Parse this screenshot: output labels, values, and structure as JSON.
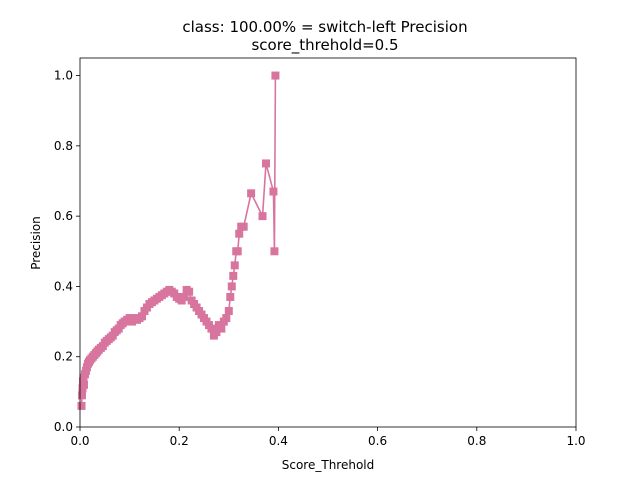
{
  "chart_data": {
    "type": "line",
    "title": "class: 100.00% = switch-left Precision",
    "subtitle": "score_threhold=0.5",
    "xlabel": "Score_Threhold",
    "ylabel": "Precision",
    "xlim": [
      0,
      1
    ],
    "ylim": [
      0,
      1.05
    ],
    "xticks": [
      "0.0",
      "0.2",
      "0.4",
      "0.6",
      "0.8",
      "1.0"
    ],
    "yticks": [
      "0.0",
      "0.2",
      "0.4",
      "0.6",
      "0.8",
      "1.0"
    ],
    "grid": false,
    "legend": "none",
    "series": [
      {
        "color": "#d8759e",
        "marker": "square",
        "x": [
          0.003,
          0.004,
          0.005,
          0.006,
          0.007,
          0.008,
          0.01,
          0.012,
          0.014,
          0.016,
          0.018,
          0.02,
          0.023,
          0.026,
          0.029,
          0.032,
          0.035,
          0.038,
          0.042,
          0.046,
          0.05,
          0.054,
          0.058,
          0.062,
          0.066,
          0.07,
          0.074,
          0.078,
          0.082,
          0.086,
          0.09,
          0.095,
          0.1,
          0.105,
          0.11,
          0.115,
          0.12,
          0.125,
          0.13,
          0.135,
          0.14,
          0.145,
          0.15,
          0.155,
          0.16,
          0.165,
          0.17,
          0.175,
          0.18,
          0.185,
          0.19,
          0.195,
          0.2,
          0.205,
          0.21,
          0.215,
          0.22,
          0.225,
          0.23,
          0.235,
          0.24,
          0.245,
          0.25,
          0.255,
          0.26,
          0.265,
          0.27,
          0.275,
          0.28,
          0.285,
          0.29,
          0.295,
          0.3,
          0.303,
          0.306,
          0.309,
          0.312,
          0.315,
          0.318,
          0.321,
          0.325,
          0.33,
          0.345,
          0.368,
          0.375,
          0.39,
          0.392,
          0.394
        ],
        "y": [
          0.06,
          0.09,
          0.11,
          0.13,
          0.14,
          0.12,
          0.15,
          0.16,
          0.17,
          0.18,
          0.185,
          0.19,
          0.195,
          0.2,
          0.205,
          0.21,
          0.215,
          0.22,
          0.225,
          0.23,
          0.24,
          0.245,
          0.25,
          0.255,
          0.26,
          0.27,
          0.275,
          0.28,
          0.29,
          0.295,
          0.3,
          0.305,
          0.31,
          0.3,
          0.31,
          0.305,
          0.31,
          0.315,
          0.33,
          0.34,
          0.35,
          0.355,
          0.36,
          0.365,
          0.37,
          0.375,
          0.38,
          0.385,
          0.39,
          0.385,
          0.38,
          0.37,
          0.365,
          0.36,
          0.37,
          0.39,
          0.385,
          0.36,
          0.35,
          0.34,
          0.33,
          0.32,
          0.31,
          0.3,
          0.29,
          0.28,
          0.26,
          0.27,
          0.29,
          0.28,
          0.3,
          0.31,
          0.33,
          0.37,
          0.4,
          0.43,
          0.46,
          0.5,
          0.5,
          0.55,
          0.57,
          0.57,
          0.665,
          0.6,
          0.75,
          0.67,
          0.5,
          1.0
        ]
      }
    ]
  }
}
